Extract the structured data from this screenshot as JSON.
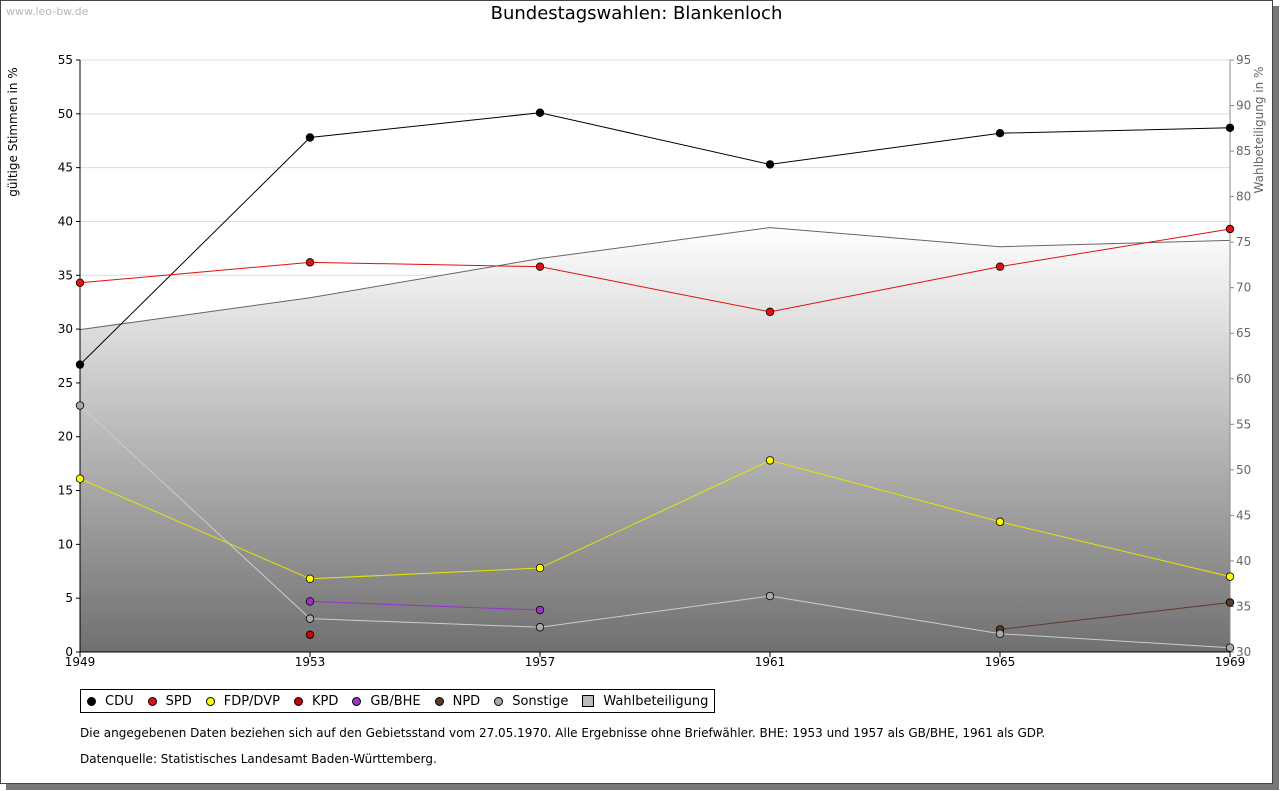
{
  "watermark": "www.leo-bw.de",
  "chart_data": {
    "type": "line",
    "title": "Bundestagswahlen: Blankenloch",
    "ylabel": "gültige Stimmen in %",
    "y2label": "Wahlbeteiligung in %",
    "x": [
      1949,
      1953,
      1957,
      1961,
      1965,
      1969
    ],
    "ylim": [
      0,
      55
    ],
    "y2lim": [
      30,
      95
    ],
    "yticks": [
      0,
      5,
      10,
      15,
      20,
      25,
      30,
      35,
      40,
      45,
      50,
      55
    ],
    "y2ticks": [
      30,
      35,
      40,
      45,
      50,
      55,
      60,
      65,
      70,
      75,
      80,
      85,
      90,
      95
    ],
    "grid": true,
    "series": [
      {
        "name": "CDU",
        "color": "#000000",
        "values": [
          26.7,
          47.8,
          50.1,
          45.3,
          48.2,
          48.7
        ]
      },
      {
        "name": "SPD",
        "color": "#e01010",
        "values": [
          34.3,
          36.2,
          35.8,
          31.6,
          35.8,
          39.3
        ]
      },
      {
        "name": "FDP/DVP",
        "color": "#ffff00",
        "line": "#e6e600",
        "values": [
          16.1,
          6.8,
          7.8,
          17.8,
          12.1,
          7.0
        ]
      },
      {
        "name": "KPD",
        "color": "#cc0000",
        "values": [
          null,
          1.6,
          null,
          null,
          null,
          null
        ]
      },
      {
        "name": "GB/BHE",
        "color": "#9933cc",
        "values": [
          null,
          4.7,
          3.9,
          null,
          null,
          null
        ]
      },
      {
        "name": "NPD",
        "color": "#5c3a2a",
        "values": [
          null,
          null,
          null,
          null,
          2.1,
          4.6
        ]
      },
      {
        "name": "Sonstige",
        "color": "#aaaaaa",
        "line": "#cccccc",
        "values": [
          22.9,
          3.1,
          2.3,
          5.2,
          1.7,
          0.4
        ]
      }
    ],
    "turnout": {
      "name": "Wahlbeteiligung",
      "color": "#bbbbbb",
      "values": [
        65.4,
        68.9,
        73.2,
        76.6,
        74.5,
        75.2
      ]
    }
  },
  "legend": {
    "items": [
      {
        "label": "CDU",
        "color": "#000000",
        "type": "dot"
      },
      {
        "label": "SPD",
        "color": "#e01010",
        "type": "dot"
      },
      {
        "label": "FDP/DVP",
        "color": "#ffff00",
        "type": "dot"
      },
      {
        "label": "KPD",
        "color": "#cc0000",
        "type": "dot"
      },
      {
        "label": "GB/BHE",
        "color": "#9933cc",
        "type": "dot"
      },
      {
        "label": "NPD",
        "color": "#5c3a2a",
        "type": "dot"
      },
      {
        "label": "Sonstige",
        "color": "#aaaaaa",
        "type": "dot"
      },
      {
        "label": "Wahlbeteiligung",
        "color": "#bbbbbb",
        "type": "box"
      }
    ]
  },
  "notes": {
    "line1": "Die angegebenen Daten beziehen sich auf den Gebietsstand vom 27.05.1970. Alle Ergebnisse ohne Briefwähler. BHE: 1953 und 1957 als GB/BHE, 1961 als GDP.",
    "line2": "Datenquelle: Statistisches Landesamt Baden-Württemberg."
  }
}
